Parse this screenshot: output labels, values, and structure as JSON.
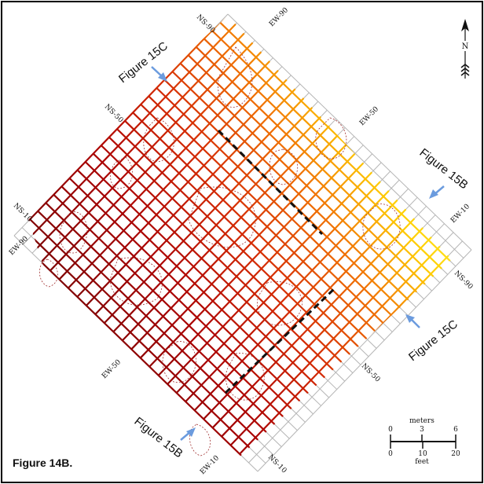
{
  "caption": "Figure 14B.",
  "north_label": "N",
  "grid_labels": {
    "ns_top": "NS-90",
    "ew_top": "EW-90",
    "ns_upper_left": "NS-50",
    "ew_upper_right": "EW-50",
    "ns_left": "NS-10",
    "ew_left": "EW-90",
    "ew_right": "EW-10",
    "ns_right": "NS-90",
    "ew_lower_left": "EW-50",
    "ns_lower_right": "NS-50",
    "ew_bottom": "EW-10",
    "ns_bottom": "NS-10"
  },
  "figure_refs": {
    "fig15c_upper": "Figure 15C",
    "fig15b_right": "Figure 15B",
    "fig15c_lower": "Figure 15C",
    "fig15b_lower": "Figure 15B"
  },
  "scale_bar": {
    "units_top": "meters",
    "units_bottom": "feet",
    "meters_ticks": [
      "0",
      "3",
      "6"
    ],
    "feet_ticks": [
      "0",
      "10",
      "20"
    ]
  },
  "colors": {
    "frame": "#000000",
    "arrow": "#6b9bde",
    "section_line": "#111111",
    "contour": "#a03030"
  },
  "grid_fill_gradient": [
    "#6e0000",
    "#a80000",
    "#d42a00",
    "#f07000",
    "#ffcc00",
    "#ffff40"
  ]
}
